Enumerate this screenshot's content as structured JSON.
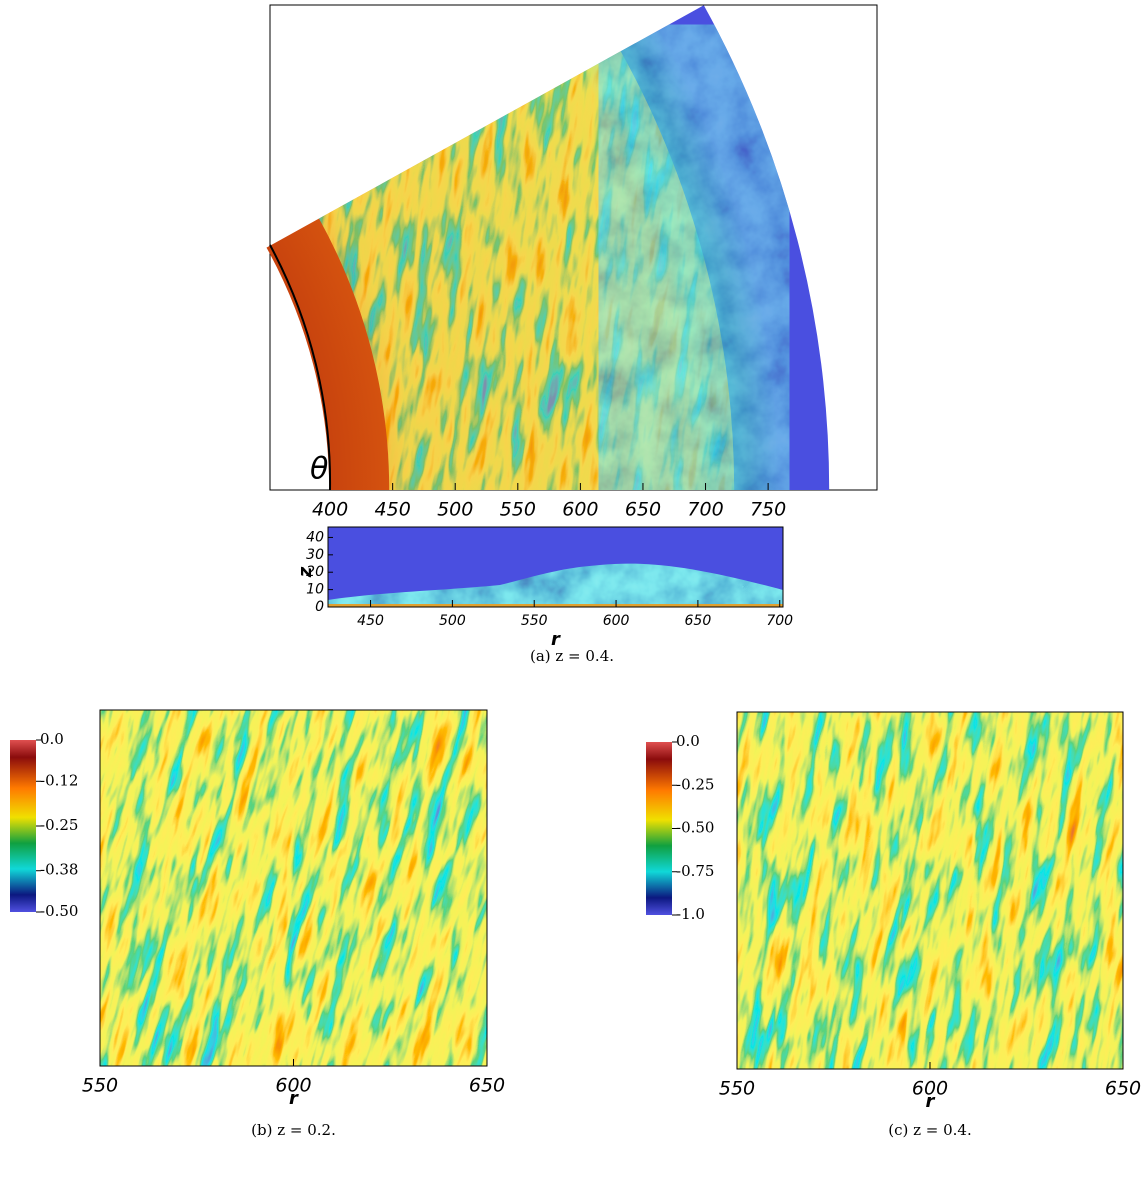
{
  "chart_data": [
    {
      "type": "sector",
      "caption": "(a) z = 0.4.",
      "angle_label": "θ",
      "xlim": [
        352,
        837
      ],
      "xticks": [
        400,
        450,
        500,
        550,
        600,
        650,
        700,
        750
      ]
    },
    {
      "type": "side",
      "xlabel": "r",
      "ylabel": "z",
      "xlim": [
        424,
        702
      ],
      "xticks": [
        450,
        500,
        550,
        600,
        650,
        700
      ],
      "ylim": [
        0,
        46
      ],
      "yticks": [
        0,
        10,
        20,
        30,
        40
      ]
    },
    {
      "type": "field",
      "caption": "(b) z = 0.2.",
      "xlabel": "r",
      "xlim": [
        550,
        650
      ],
      "xticks": [
        550,
        600,
        650
      ],
      "colorbar": {
        "lim": [
          -0.5,
          0
        ],
        "ticks": [
          {
            "value": 0,
            "label": "0.0"
          },
          -0.12,
          -0.25,
          -0.38,
          {
            "value": -0.5,
            "label": "-0.50"
          }
        ]
      }
    },
    {
      "type": "field",
      "caption": "(c) z = 0.4.",
      "xlabel": "r",
      "xlim": [
        550,
        650
      ],
      "xticks": [
        550,
        600,
        650
      ],
      "colorbar": {
        "lim": [
          -1,
          0
        ],
        "ticks": [
          {
            "value": 0,
            "label": "0.0"
          },
          -0.25,
          {
            "value": -0.5,
            "label": "-0.50"
          },
          -0.75,
          {
            "value": -1,
            "label": "-1.0"
          }
        ]
      }
    }
  ]
}
